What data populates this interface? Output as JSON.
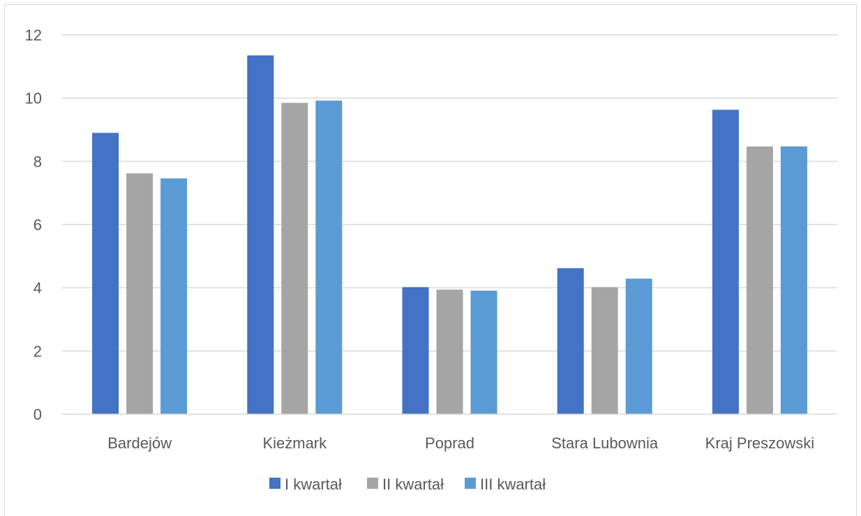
{
  "chart_data": {
    "type": "bar",
    "categories": [
      "Bardejów",
      "Kieżmark",
      "Poprad",
      "Stara Lubownia",
      "Kraj Preszowski"
    ],
    "series": [
      {
        "name": "I kwartał",
        "color": "#4472c4",
        "values": [
          8.9,
          11.35,
          4.02,
          4.62,
          9.63
        ]
      },
      {
        "name": "II kwartał",
        "color": "#a5a5a5",
        "values": [
          7.62,
          9.85,
          3.94,
          4.02,
          8.47
        ]
      },
      {
        "name": "III kwartał",
        "color": "#5b9bd5",
        "values": [
          7.46,
          9.92,
          3.91,
          4.29,
          8.47
        ]
      }
    ],
    "ylim": [
      0,
      12
    ],
    "yticks": [
      "0",
      "2",
      "4",
      "6",
      "8",
      "10",
      "12"
    ],
    "grid": true,
    "legend_position": "bottom"
  }
}
